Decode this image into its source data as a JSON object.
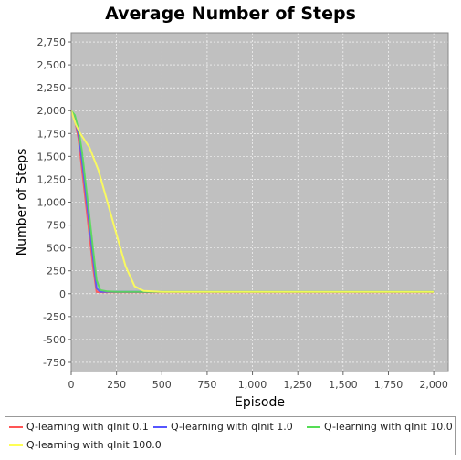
{
  "chart_data": {
    "type": "line",
    "title": "Average Number of Steps",
    "xlabel": "Episode",
    "ylabel": "Number of Steps",
    "xlim": [
      0,
      2080
    ],
    "ylim": [
      -850,
      2850
    ],
    "xticks": [
      0,
      250,
      500,
      750,
      1000,
      1250,
      1500,
      1750,
      2000
    ],
    "yticks": [
      -750,
      -500,
      -250,
      0,
      250,
      500,
      750,
      1000,
      1250,
      1500,
      1750,
      2000,
      2250,
      2500,
      2750
    ],
    "xtick_labels": [
      "0",
      "250",
      "500",
      "750",
      "1,000",
      "1,250",
      "1,500",
      "1,750",
      "2,000"
    ],
    "ytick_labels": [
      "-750",
      "-500",
      "-250",
      "0",
      "250",
      "500",
      "750",
      "1,000",
      "1,250",
      "1,500",
      "1,750",
      "2,000",
      "2,250",
      "2,500",
      "2,750"
    ],
    "grid": true,
    "legend_position": "bottom",
    "series": [
      {
        "name": "Q-learning with qInit 0.1",
        "color": "#ff5555",
        "x": [
          0,
          20,
          40,
          60,
          80,
          100,
          120,
          140,
          160,
          200,
          250,
          500,
          750,
          1000,
          1250,
          1500,
          1750,
          2000
        ],
        "y": [
          2000,
          1900,
          1700,
          1350,
          1000,
          650,
          300,
          20,
          15,
          15,
          15,
          15,
          15,
          15,
          15,
          15,
          15,
          15
        ]
      },
      {
        "name": "Q-learning with qInit 1.0",
        "color": "#5555ff",
        "x": [
          0,
          20,
          40,
          60,
          80,
          100,
          120,
          140,
          160,
          200,
          250,
          500,
          750,
          1000,
          1250,
          1500,
          1750,
          2000
        ],
        "y": [
          2000,
          1900,
          1750,
          1450,
          1100,
          750,
          400,
          60,
          20,
          20,
          20,
          20,
          20,
          20,
          20,
          20,
          20,
          20
        ]
      },
      {
        "name": "Q-learning with qInit 10.0",
        "color": "#55dd55",
        "x": [
          0,
          20,
          40,
          60,
          80,
          100,
          120,
          140,
          160,
          200,
          250,
          500,
          750,
          1000,
          1250,
          1500,
          1750,
          2000
        ],
        "y": [
          2000,
          1950,
          1800,
          1550,
          1200,
          850,
          500,
          150,
          40,
          25,
          20,
          20,
          20,
          20,
          20,
          20,
          20,
          20
        ]
      },
      {
        "name": "Q-learning with qInit 100.0",
        "color": "#ffff55",
        "x": [
          0,
          25,
          50,
          100,
          150,
          200,
          250,
          300,
          350,
          400,
          500,
          750,
          1000,
          1250,
          1500,
          1750,
          2000
        ],
        "y": [
          2000,
          1850,
          1750,
          1600,
          1350,
          1000,
          650,
          300,
          80,
          30,
          20,
          20,
          20,
          20,
          20,
          20,
          20
        ]
      }
    ]
  }
}
